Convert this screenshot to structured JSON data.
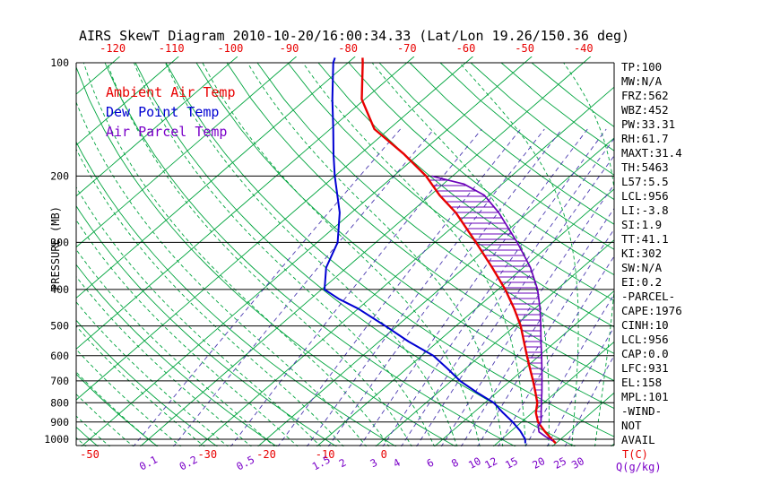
{
  "title": "AIRS SkewT Diagram 2010-10-20/16:00:34.33 (Lat/Lon 19.26/150.36 deg)",
  "legend": {
    "items": [
      {
        "label": "Ambient Air Temp",
        "color": "#e80000"
      },
      {
        "label": "Dew Point Temp",
        "color": "#0000d2"
      },
      {
        "label": "Air Parcel Temp",
        "color": "#7a00c8"
      }
    ]
  },
  "axes": {
    "y_label": "PRESSURE (MB)",
    "pressure_ticks": [
      100,
      200,
      300,
      400,
      500,
      600,
      700,
      800,
      900,
      1000
    ],
    "top_temp_ticks": [
      -120,
      -110,
      -100,
      -90,
      -80,
      -70,
      -60,
      -50,
      -40
    ],
    "bottom_temp_ticks": [
      -50,
      -30,
      -20,
      -10,
      0
    ],
    "mixing_ratio_ticks": [
      0.1,
      0.2,
      0.5,
      1.5,
      2,
      3,
      4,
      6,
      8,
      10,
      12,
      15,
      20,
      25,
      30
    ],
    "x_label_temp": "T(C)",
    "x_label_q": "Q(g/kg)"
  },
  "stats_panel": [
    "TP:100",
    "MW:N/A",
    "FRZ:562",
    "WBZ:452",
    "PW:33.31",
    "RH:61.7",
    "MAXT:31.4",
    "TH:5463",
    "L57:5.5",
    "LCL:956",
    "LI:-3.8",
    "SI:1.9",
    "TT:41.1",
    "KI:302",
    "SW:N/A",
    "EI:0.2",
    "-PARCEL-",
    "CAPE:1976",
    "CINH:10",
    "LCL:956",
    "CAP:0.0",
    "LFC:931",
    "EL:158",
    "MPL:101",
    "-WIND-",
    "NOT",
    "AVAIL"
  ],
  "chart_data": {
    "type": "line",
    "subtype": "skewt-log-p",
    "pressure_range_mb": [
      100,
      1050
    ],
    "isotherm_step_C": 10,
    "dry_adiabats_thetaC": {
      "min": -80,
      "max": 160,
      "step": 10
    },
    "moist_adiabats_thetawC": {
      "min": -52,
      "max": 36,
      "step": 4
    },
    "mixing_ratio_lines_gkg": [
      0.1,
      0.2,
      0.5,
      1,
      1.5,
      2,
      3,
      4,
      5,
      6,
      8,
      10,
      12,
      15,
      20,
      25,
      30
    ],
    "colors": {
      "isotherm": "#00a43e",
      "dry_adiabat": "#00a43e",
      "moist_adiabat": "#00a43e",
      "mixing_ratio": "#4b3ab0",
      "temp_axis": "#e80000",
      "q_axis": "#7a00c8",
      "frame": "#000000"
    },
    "series": [
      {
        "name": "ambient_air_temp",
        "color": "#e80000",
        "width": 2.4,
        "points_P_T": [
          [
            1025,
            30
          ],
          [
            1000,
            28.5
          ],
          [
            950,
            25.6
          ],
          [
            900,
            22.8
          ],
          [
            850,
            20.6
          ],
          [
            800,
            18.9
          ],
          [
            750,
            16.5
          ],
          [
            700,
            13.9
          ],
          [
            650,
            11.0
          ],
          [
            600,
            7.9
          ],
          [
            550,
            4.6
          ],
          [
            500,
            1.0
          ],
          [
            450,
            -3.5
          ],
          [
            400,
            -8.8
          ],
          [
            350,
            -15.3
          ],
          [
            300,
            -23.0
          ],
          [
            250,
            -32.3
          ],
          [
            225,
            -38.4
          ],
          [
            200,
            -44.5
          ],
          [
            175,
            -52.5
          ],
          [
            150,
            -62.5
          ],
          [
            125,
            -70.5
          ],
          [
            100,
            -77.5
          ],
          [
            97,
            -78.5
          ]
        ]
      },
      {
        "name": "dew_point_temp",
        "color": "#0000d2",
        "width": 2,
        "points_P_T": [
          [
            1025,
            24.8
          ],
          [
            1000,
            24.0
          ],
          [
            950,
            21.5
          ],
          [
            900,
            18.5
          ],
          [
            850,
            15.0
          ],
          [
            800,
            11.5
          ],
          [
            750,
            6.5
          ],
          [
            700,
            1.5
          ],
          [
            650,
            -3.0
          ],
          [
            600,
            -8.0
          ],
          [
            550,
            -15.0
          ],
          [
            500,
            -22.0
          ],
          [
            450,
            -30.0
          ],
          [
            425,
            -35.0
          ],
          [
            400,
            -39.5
          ],
          [
            350,
            -43.5
          ],
          [
            300,
            -46.5
          ],
          [
            250,
            -52.0
          ],
          [
            200,
            -60.0
          ],
          [
            175,
            -64.5
          ],
          [
            150,
            -69.5
          ],
          [
            125,
            -75.5
          ],
          [
            100,
            -82.5
          ],
          [
            97,
            -83.2
          ]
        ]
      },
      {
        "name": "air_parcel_temp",
        "color": "#6a00b8",
        "width": 1.7,
        "points_P_T": [
          [
            1010,
            29.0
          ],
          [
            985,
            27.0
          ],
          [
            956,
            24.9
          ],
          [
            925,
            23.7
          ],
          [
            900,
            23.3
          ],
          [
            850,
            21.5
          ],
          [
            800,
            19.6
          ],
          [
            750,
            17.6
          ],
          [
            700,
            15.4
          ],
          [
            650,
            13.0
          ],
          [
            600,
            10.4
          ],
          [
            550,
            7.5
          ],
          [
            500,
            4.4
          ],
          [
            450,
            0.9
          ],
          [
            400,
            -3.3
          ],
          [
            350,
            -8.8
          ],
          [
            300,
            -16.0
          ],
          [
            250,
            -25.0
          ],
          [
            225,
            -30.8
          ],
          [
            210,
            -36.5
          ],
          [
            200,
            -43.5
          ]
        ]
      }
    ],
    "cape_hatch": {
      "from_mb": 930,
      "to_mb": 204,
      "color": "#6a00b8",
      "spacing_px": 6
    }
  }
}
